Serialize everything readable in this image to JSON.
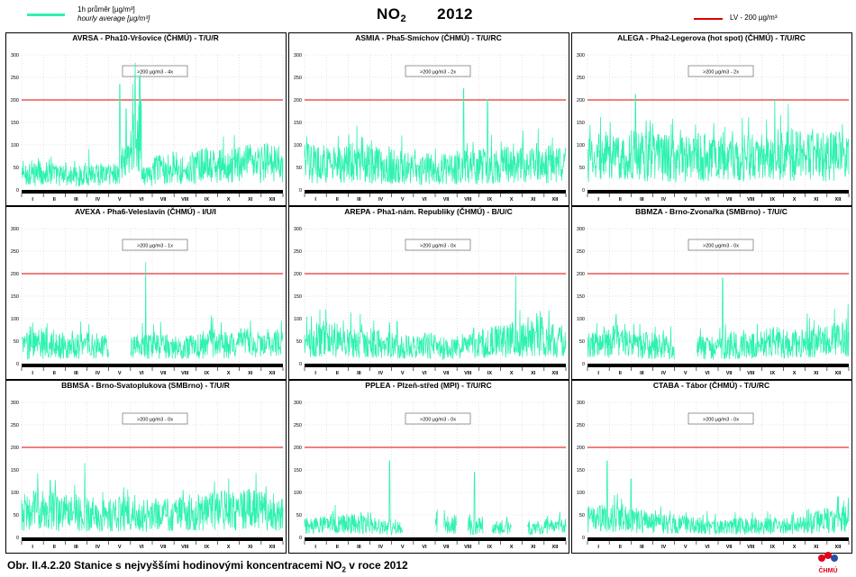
{
  "header": {
    "legend_hourly_cz": "1h průměr [µg/m³]",
    "legend_hourly_en": "hourly average [µg/m³]",
    "title_pollutant": "NO",
    "title_sub": "2",
    "title_year": "2012",
    "legend_lv": "LV - 200 µg/m³"
  },
  "colors": {
    "series": "#2ef2b0",
    "limit_line": "#dd0000",
    "axis_bar": "#000000",
    "grid": "#c8c8c8"
  },
  "axis": {
    "y_ticks": [
      "0",
      "50",
      "100",
      "150",
      "200",
      "250",
      "300"
    ],
    "months": [
      "I",
      "II",
      "III",
      "IV",
      "V",
      "VI",
      "VII",
      "VIII",
      "IX",
      "X",
      "XI",
      "XII"
    ]
  },
  "chart_data": [
    {
      "type": "line",
      "title": "AVRSA - Pha10-Vršovice (ČHMÚ) - T/U/R",
      "annotation": ">200 µg/m3 - 4x",
      "ylim": [
        0,
        300
      ],
      "limit_value": 200,
      "series": [
        {
          "values": [
            32,
            35,
            40,
            33,
            30,
            31,
            38,
            35,
            37,
            60,
            150,
            30,
            45,
            50,
            45,
            45,
            55,
            52,
            52,
            55,
            58,
            55,
            62,
            57
          ]
        }
      ],
      "peaks": [
        {
          "month": 4.5,
          "value": 235
        },
        {
          "month": 4.8,
          "value": 180
        }
      ],
      "gaps": []
    },
    {
      "type": "line",
      "title": "ASMIA - Pha5-Smíchov (ČHMÚ) - T/U/RC",
      "annotation": ">200 µg/m3 - 2x",
      "ylim": [
        0,
        300
      ],
      "limit_value": 200,
      "series": [
        {
          "values": [
            60,
            58,
            55,
            57,
            60,
            58,
            55,
            50,
            52,
            48,
            45,
            48,
            46,
            45,
            52,
            50,
            55,
            52,
            55,
            58,
            57,
            60,
            58,
            55
          ]
        }
      ],
      "peaks": [
        {
          "month": 7.3,
          "value": 225
        },
        {
          "month": 8.4,
          "value": 200
        }
      ],
      "gaps": []
    },
    {
      "type": "line",
      "title": "ALEGA - Pha2-Legerova (hot spot) (ČHMÚ) - T/U/RC",
      "annotation": ">200 µg/m3 - 2x",
      "ylim": [
        0,
        300
      ],
      "limit_value": 200,
      "series": [
        {
          "values": [
            70,
            75,
            72,
            70,
            78,
            75,
            72,
            70,
            68,
            70,
            72,
            68,
            65,
            68,
            70,
            72,
            75,
            78,
            80,
            75,
            72,
            78,
            76,
            74
          ]
        }
      ],
      "peaks": [
        {
          "month": 2.2,
          "value": 212
        },
        {
          "month": 8.6,
          "value": 200
        }
      ],
      "gaps": []
    },
    {
      "type": "line",
      "title": "AVEXA - Pha6-Veleslavín (ČHMÚ) - I/U/I",
      "annotation": ">200 µg/m3 - 1x",
      "ylim": [
        0,
        300
      ],
      "limit_value": 200,
      "series": [
        {
          "values": [
            40,
            45,
            42,
            40,
            38,
            40,
            42,
            38,
            null,
            null,
            35,
            38,
            40,
            38,
            35,
            38,
            42,
            45,
            42,
            40,
            45,
            42,
            44,
            42
          ]
        }
      ],
      "peaks": [
        {
          "month": 5.7,
          "value": 225
        }
      ],
      "gaps": [
        [
          4.0,
          5.0
        ]
      ]
    },
    {
      "type": "line",
      "title": "AREPA - Pha1-nám. Republiky (ČHMÚ) - B/U/C",
      "annotation": ">200 µg/m3 - 0x",
      "ylim": [
        0,
        300
      ],
      "limit_value": 200,
      "series": [
        {
          "values": [
            45,
            55,
            55,
            50,
            48,
            50,
            45,
            40,
            42,
            38,
            35,
            38,
            35,
            34,
            36,
            38,
            45,
            50,
            52,
            55,
            60,
            62,
            55,
            50
          ]
        }
      ],
      "peaks": [
        {
          "month": 9.7,
          "value": 196
        }
      ],
      "gaps": []
    },
    {
      "type": "line",
      "title": "BBMZA - Brno-Zvonařka (SMBrno) - T/U/C",
      "annotation": ">200 µg/m3 - 0x",
      "ylim": [
        0,
        300
      ],
      "limit_value": 200,
      "series": [
        {
          "values": [
            40,
            45,
            50,
            45,
            42,
            40,
            38,
            36,
            null,
            null,
            35,
            35,
            40,
            38,
            40,
            42,
            45,
            48,
            45,
            45,
            48,
            50,
            52,
            55
          ]
        }
      ],
      "peaks": [
        {
          "month": 6.2,
          "value": 190
        }
      ],
      "gaps": [
        [
          4.0,
          4.9
        ]
      ]
    },
    {
      "type": "line",
      "title": "BBMSA - Brno-Svatoplukova (SMBrno) - T/U/R",
      "annotation": ">200 µg/m3 - 0x",
      "ylim": [
        0,
        300
      ],
      "limit_value": 200,
      "series": [
        {
          "values": [
            55,
            60,
            58,
            55,
            55,
            52,
            50,
            48,
            50,
            52,
            50,
            48,
            48,
            50,
            52,
            55,
            55,
            58,
            60,
            60,
            62,
            60,
            58,
            56
          ]
        }
      ],
      "peaks": [
        {
          "month": 2.9,
          "value": 165
        }
      ],
      "gaps": []
    },
    {
      "type": "line",
      "title": "PPLEA - Plzeň-střed (MPI) - T/U/RC",
      "annotation": ">200 µg/m3 - 0x",
      "ylim": [
        0,
        300
      ],
      "limit_value": 200,
      "series": [
        {
          "values": [
            25,
            28,
            30,
            28,
            30,
            28,
            25,
            22,
            20,
            null,
            null,
            null,
            35,
            30,
            null,
            22,
            25,
            20,
            22,
            null,
            22,
            20,
            24,
            25
          ]
        }
      ],
      "peaks": [
        {
          "month": 3.9,
          "value": 170
        },
        {
          "month": 7.8,
          "value": 145
        }
      ],
      "gaps": [
        [
          4.6,
          5.5
        ],
        [
          6.1,
          6.4
        ],
        [
          8.2,
          8.6
        ],
        [
          9.8,
          10.2
        ]
      ]
    },
    {
      "type": "line",
      "title": "CTABA - Tábor (ČHMÚ) - T/U/RC",
      "annotation": ">200 µg/m3 - 0x",
      "ylim": [
        0,
        300
      ],
      "limit_value": 200,
      "series": [
        {
          "values": [
            40,
            42,
            45,
            40,
            38,
            35,
            32,
            30,
            28,
            26,
            25,
            24,
            22,
            24,
            25,
            24,
            25,
            26,
            28,
            30,
            32,
            35,
            38,
            40
          ]
        }
      ],
      "peaks": [
        {
          "month": 0.9,
          "value": 170
        },
        {
          "month": 2.0,
          "value": 130
        }
      ],
      "gaps": []
    }
  ],
  "caption": {
    "prefix": "Obr. II.4.2.20  Stanice s nejvyššími hodinovými koncentracemi NO",
    "sub": "2",
    "suffix": " v roce 2012"
  },
  "logo": {
    "text": "ČHMÚ"
  }
}
